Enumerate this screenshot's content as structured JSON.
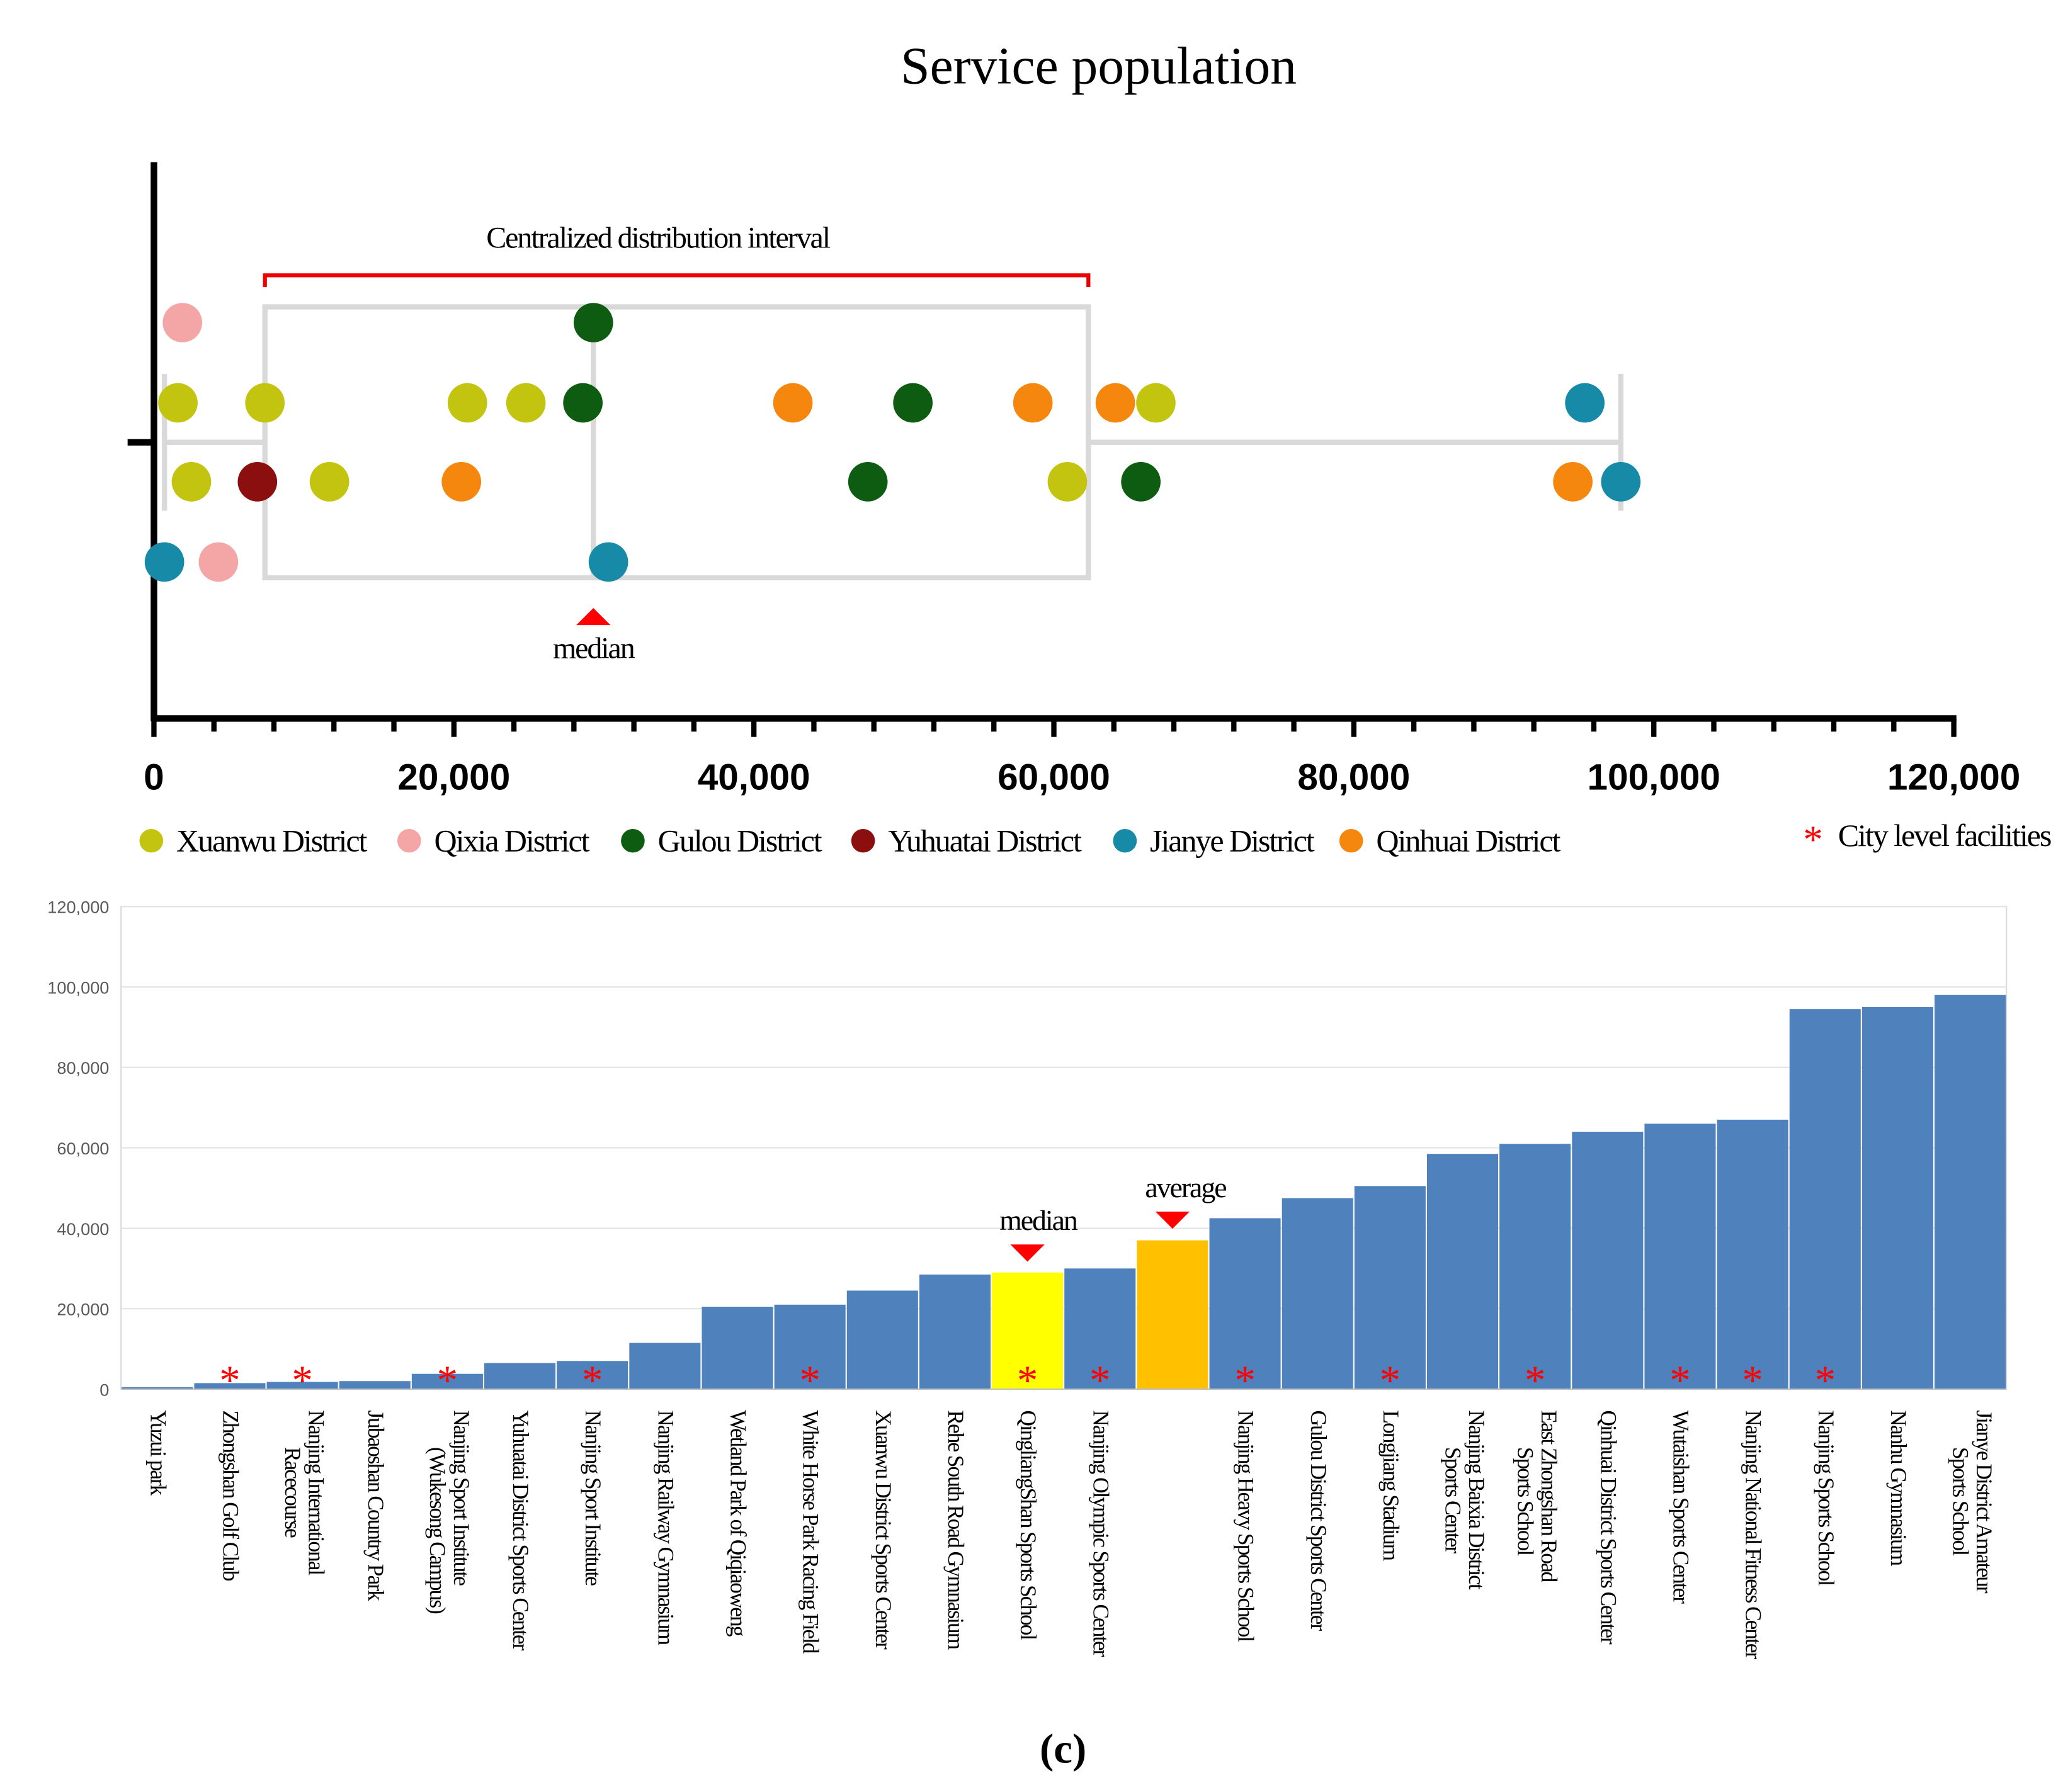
{
  "chart_data": [
    {
      "type": "scatter",
      "title": "Service population",
      "annotation_interval": "Centralized distribution interval",
      "annotation_median": "median",
      "xlim": [
        0,
        120000
      ],
      "xticks": [
        "0",
        "20,000",
        "40,000",
        "60,000",
        "80,000",
        "100,000",
        "120,000"
      ],
      "xtick_values": [
        0,
        20000,
        40000,
        60000,
        80000,
        100000,
        120000
      ],
      "boxplot": {
        "min": 700,
        "q1": 7400,
        "median": 29300,
        "q3": 62300,
        "max": 97800
      },
      "legend": [
        {
          "name": "Xuanwu District",
          "color": "#c3c410"
        },
        {
          "name": "Qixia District",
          "color": "#f4a6a6"
        },
        {
          "name": "Gulou District",
          "color": "#0d5c12"
        },
        {
          "name": "Yuhuatai District",
          "color": "#8b0f0f"
        },
        {
          "name": "Jianye District",
          "color": "#168aa6"
        },
        {
          "name": "Qinhuai District",
          "color": "#f5870f"
        }
      ],
      "legend_city": "City level facilities",
      "points": [
        {
          "x": 1900,
          "row": 1,
          "district": "Qixia District"
        },
        {
          "x": 29300,
          "row": 1,
          "district": "Gulou District"
        },
        {
          "x": 1600,
          "row": 2,
          "district": "Xuanwu District"
        },
        {
          "x": 7400,
          "row": 2,
          "district": "Xuanwu District"
        },
        {
          "x": 20900,
          "row": 2,
          "district": "Xuanwu District"
        },
        {
          "x": 24800,
          "row": 2,
          "district": "Xuanwu District"
        },
        {
          "x": 28600,
          "row": 2,
          "district": "Gulou District"
        },
        {
          "x": 42600,
          "row": 2,
          "district": "Qinhuai District"
        },
        {
          "x": 50600,
          "row": 2,
          "district": "Gulou District"
        },
        {
          "x": 58600,
          "row": 2,
          "district": "Qinhuai District"
        },
        {
          "x": 64100,
          "row": 2,
          "district": "Qinhuai District"
        },
        {
          "x": 66800,
          "row": 2,
          "district": "Xuanwu District"
        },
        {
          "x": 95400,
          "row": 2,
          "district": "Jianye District"
        },
        {
          "x": 2500,
          "row": 3,
          "district": "Xuanwu District"
        },
        {
          "x": 6900,
          "row": 3,
          "district": "Yuhuatai District"
        },
        {
          "x": 11700,
          "row": 3,
          "district": "Xuanwu District"
        },
        {
          "x": 20500,
          "row": 3,
          "district": "Qinhuai District"
        },
        {
          "x": 47600,
          "row": 3,
          "district": "Gulou District"
        },
        {
          "x": 60900,
          "row": 3,
          "district": "Xuanwu District"
        },
        {
          "x": 65800,
          "row": 3,
          "district": "Gulou District"
        },
        {
          "x": 94600,
          "row": 3,
          "district": "Qinhuai District"
        },
        {
          "x": 97800,
          "row": 3,
          "district": "Jianye District"
        },
        {
          "x": 700,
          "row": 4,
          "district": "Jianye District"
        },
        {
          "x": 4300,
          "row": 4,
          "district": "Qixia District"
        },
        {
          "x": 30300,
          "row": 4,
          "district": "Jianye District"
        }
      ]
    },
    {
      "type": "bar",
      "ylim": [
        0,
        120000
      ],
      "yticks": [
        "0",
        "20,000",
        "40,000",
        "60,000",
        "80,000",
        "100,000",
        "120,000"
      ],
      "ytick_values": [
        0,
        20000,
        40000,
        60000,
        80000,
        100000,
        120000
      ],
      "grid": true,
      "annotation_median": "median",
      "annotation_average": "average",
      "bar_color": "#4f81bd",
      "median_color": "#ffff00",
      "average_color": "#ffc000",
      "bars": [
        {
          "label": [
            "Yuzui park"
          ],
          "value": 500,
          "city": false
        },
        {
          "label": [
            "Zhongshan Golf Club"
          ],
          "value": 1500,
          "city": true
        },
        {
          "label": [
            "Nanjing International",
            "Racecourse"
          ],
          "value": 1800,
          "city": true
        },
        {
          "label": [
            "Jubaoshan Country Park"
          ],
          "value": 2000,
          "city": false
        },
        {
          "label": [
            "Nanjing Sport Institute",
            "(Wukesong Campus)"
          ],
          "value": 3800,
          "city": true
        },
        {
          "label": [
            "Yuhuatai District Sports Center"
          ],
          "value": 6500,
          "city": false
        },
        {
          "label": [
            "Nanjing Sport Institute"
          ],
          "value": 7000,
          "city": true
        },
        {
          "label": [
            "Nanjing Railway Gymnasium"
          ],
          "value": 11500,
          "city": false
        },
        {
          "label": [
            "Wetland Park of Qiqiaoweng"
          ],
          "value": 20500,
          "city": false
        },
        {
          "label": [
            "White Horse Park Racing Field"
          ],
          "value": 21000,
          "city": true
        },
        {
          "label": [
            "Xuanwu District Sports Center"
          ],
          "value": 24500,
          "city": false
        },
        {
          "label": [
            "Rehe South Road Gymnasium"
          ],
          "value": 28500,
          "city": false
        },
        {
          "label": [
            "QingliangShan Sports School"
          ],
          "value": 29000,
          "city": true,
          "kind": "median"
        },
        {
          "label": [
            "Nanjing Olympic Sports Center"
          ],
          "value": 30000,
          "city": true
        },
        {
          "label": [],
          "value": 37000,
          "city": false,
          "kind": "average"
        },
        {
          "label": [
            "Nanjing Heavy Sports School"
          ],
          "value": 42500,
          "city": true
        },
        {
          "label": [
            "Gulou District Sports Center"
          ],
          "value": 47500,
          "city": false
        },
        {
          "label": [
            "Longjiang Stadium"
          ],
          "value": 50500,
          "city": true
        },
        {
          "label": [
            "Nanjing Baixia District",
            "Sports Center"
          ],
          "value": 58500,
          "city": false
        },
        {
          "label": [
            "East Zhongshan Road",
            "Sports School"
          ],
          "value": 61000,
          "city": true
        },
        {
          "label": [
            "Qinhuai District Sports Center"
          ],
          "value": 64000,
          "city": false
        },
        {
          "label": [
            "Wutaishan Sports Center"
          ],
          "value": 66000,
          "city": true
        },
        {
          "label": [
            "Nanjing National Fitness Center"
          ],
          "value": 67000,
          "city": true
        },
        {
          "label": [
            "Nanjing Sports School"
          ],
          "value": 94500,
          "city": true
        },
        {
          "label": [
            "Nanhu Gymnasium"
          ],
          "value": 95000,
          "city": false
        },
        {
          "label": [
            "Jianye District Amateur",
            "Sports School"
          ],
          "value": 98000,
          "city": false
        }
      ]
    }
  ],
  "caption": "(c)"
}
